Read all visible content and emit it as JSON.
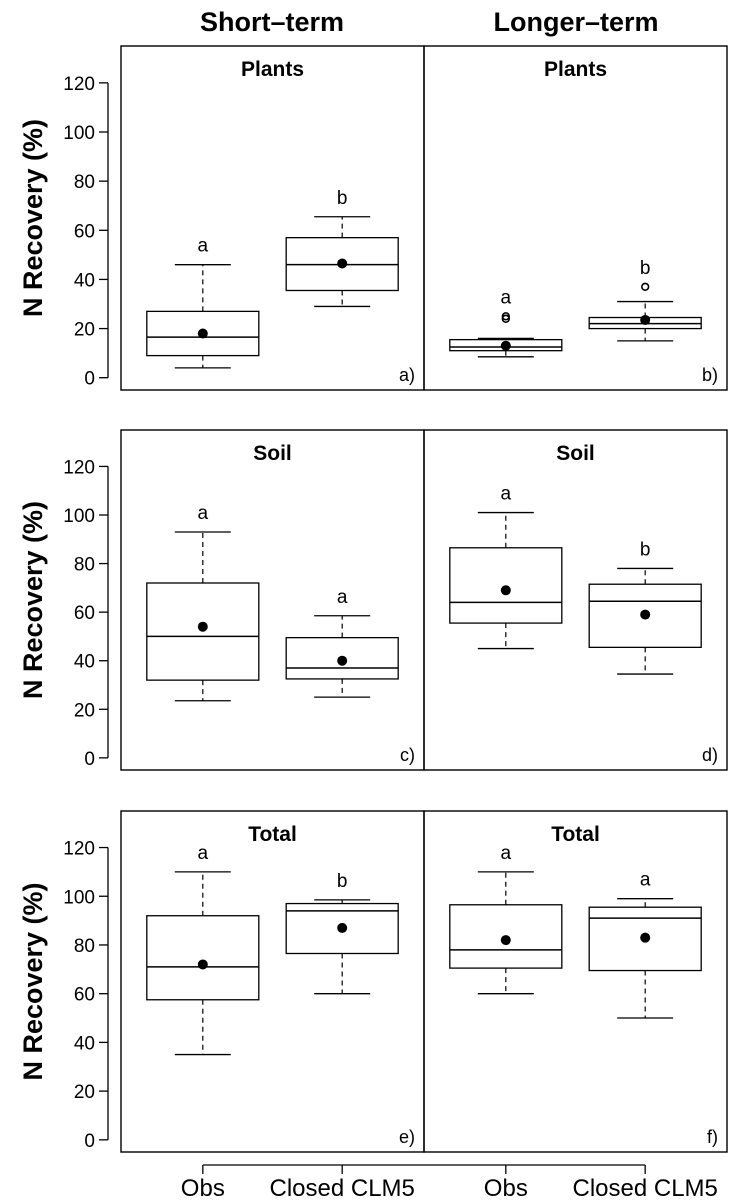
{
  "column_titles": [
    "Short–term",
    "Longer–term"
  ],
  "chart_data": [
    {
      "type": "box",
      "row": 0,
      "ylabel": "N Recovery (%)",
      "yticks": [
        0,
        20,
        40,
        60,
        80,
        100,
        120
      ],
      "ylim": [
        -5,
        135
      ],
      "panels": [
        {
          "title": "Plants",
          "tag": "a)",
          "x_labels": [
            "Obs",
            "Closed CLM5"
          ],
          "boxes": [
            {
              "whisker_low": 4,
              "q1": 9,
              "median": 16.5,
              "q3": 27,
              "whisker_high": 46,
              "mean": 18,
              "outliers": [],
              "letter": "a"
            },
            {
              "whisker_low": 29,
              "q1": 35.5,
              "median": 46,
              "q3": 57,
              "whisker_high": 65.5,
              "mean": 46.5,
              "outliers": [],
              "letter": "b"
            }
          ]
        },
        {
          "title": "Plants",
          "tag": "b)",
          "x_labels": [
            "Obs",
            "Closed CLM5"
          ],
          "boxes": [
            {
              "whisker_low": 8.5,
              "q1": 11,
              "median": 12.5,
              "q3": 15.5,
              "whisker_high": 16,
              "mean": 13,
              "outliers": [
                24,
                25
              ],
              "letter": "a"
            },
            {
              "whisker_low": 15,
              "q1": 20,
              "median": 22,
              "q3": 24.5,
              "whisker_high": 31,
              "mean": 23.5,
              "outliers": [
                37
              ],
              "letter": "b"
            }
          ]
        }
      ]
    },
    {
      "type": "box",
      "row": 1,
      "ylabel": "N Recovery (%)",
      "yticks": [
        0,
        20,
        40,
        60,
        80,
        100,
        120
      ],
      "ylim": [
        -5,
        135
      ],
      "panels": [
        {
          "title": "Soil",
          "tag": "c)",
          "x_labels": [
            "Obs",
            "Closed CLM5"
          ],
          "boxes": [
            {
              "whisker_low": 23.5,
              "q1": 32,
              "median": 50,
              "q3": 72,
              "whisker_high": 93,
              "mean": 54,
              "outliers": [],
              "letter": "a"
            },
            {
              "whisker_low": 25,
              "q1": 32.5,
              "median": 37,
              "q3": 49.5,
              "whisker_high": 58.5,
              "mean": 40,
              "outliers": [],
              "letter": "a"
            }
          ]
        },
        {
          "title": "Soil",
          "tag": "d)",
          "x_labels": [
            "Obs",
            "Closed CLM5"
          ],
          "boxes": [
            {
              "whisker_low": 45,
              "q1": 55.5,
              "median": 64,
              "q3": 86.5,
              "whisker_high": 101,
              "mean": 69,
              "outliers": [],
              "letter": "a"
            },
            {
              "whisker_low": 34.5,
              "q1": 45.5,
              "median": 64.5,
              "q3": 71.5,
              "whisker_high": 78,
              "mean": 59,
              "outliers": [],
              "letter": "b"
            }
          ]
        }
      ]
    },
    {
      "type": "box",
      "row": 2,
      "ylabel": "N Recovery (%)",
      "yticks": [
        0,
        20,
        40,
        60,
        80,
        100,
        120
      ],
      "ylim": [
        -5,
        135
      ],
      "panels": [
        {
          "title": "Total",
          "tag": "e)",
          "x_labels": [
            "Obs",
            "Closed CLM5"
          ],
          "boxes": [
            {
              "whisker_low": 35,
              "q1": 57.5,
              "median": 71,
              "q3": 92,
              "whisker_high": 110,
              "mean": 72,
              "outliers": [],
              "letter": "a"
            },
            {
              "whisker_low": 60,
              "q1": 76.5,
              "median": 94,
              "q3": 97,
              "whisker_high": 98.5,
              "mean": 87,
              "outliers": [],
              "letter": "b"
            }
          ]
        },
        {
          "title": "Total",
          "tag": "f)",
          "x_labels": [
            "Obs",
            "Closed CLM5"
          ],
          "boxes": [
            {
              "whisker_low": 60,
              "q1": 70.5,
              "median": 78,
              "q3": 96.5,
              "whisker_high": 110,
              "mean": 82,
              "outliers": [],
              "letter": "a"
            },
            {
              "whisker_low": 50,
              "q1": 69.5,
              "median": 91,
              "q3": 95.5,
              "whisker_high": 99,
              "mean": 83,
              "outliers": [],
              "letter": "a"
            }
          ]
        }
      ]
    }
  ]
}
